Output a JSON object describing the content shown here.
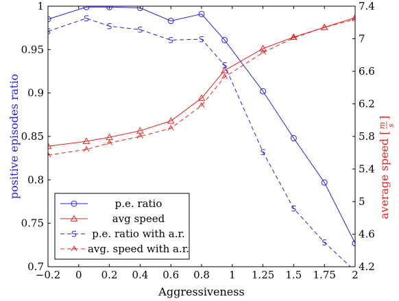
{
  "chart_data": {
    "type": "line",
    "xlabel": "Aggressiveness",
    "ylabel_left": "positive episodes ratio",
    "ylabel_right": "average speed [m/s]",
    "ylabel_right_prefix": "average speed",
    "ylabel_right_unit_num": "m",
    "ylabel_right_unit_den": "s",
    "x_ticks": [
      "−0.2",
      "0",
      "0.2",
      "0.4",
      "0.6",
      "0.8",
      "1",
      "1.25",
      "1.5",
      "1.75",
      "2"
    ],
    "y_left_ticks": [
      "0.7",
      "0.75",
      "0.8",
      "0.85",
      "0.9",
      "0.95",
      "1"
    ],
    "y_left_lim": [
      0.7,
      1.0
    ],
    "y_right_ticks": [
      "4.2",
      "4.6",
      "5",
      "5.4",
      "5.8",
      "6.2",
      "6.6",
      "7",
      "7.4"
    ],
    "y_right_lim": [
      4.2,
      7.4
    ],
    "grid": false,
    "legend_position": "bottom-left",
    "colors": {
      "blue": "#1f1fe6",
      "red": "#e61f1f"
    },
    "series": [
      {
        "name": "p.e. ratio",
        "axis": "left",
        "color": "#1f1fe6",
        "style": "solid",
        "marker": "circle",
        "x": [
          -0.2,
          0.05,
          0.2,
          0.4,
          0.6,
          0.8,
          0.95,
          1.25,
          1.5,
          1.75,
          2.0
        ],
        "y": [
          0.985,
          0.999,
          0.999,
          0.998,
          0.983,
          0.991,
          0.961,
          0.902,
          0.848,
          0.797,
          0.727
        ]
      },
      {
        "name": "avg speed",
        "axis": "right",
        "color": "#e61f1f",
        "style": "solid",
        "marker": "triangle",
        "x": [
          -0.2,
          0.05,
          0.2,
          0.4,
          0.6,
          0.8,
          0.95,
          1.25,
          1.5,
          1.75,
          2.0
        ],
        "y": [
          5.68,
          5.74,
          5.79,
          5.87,
          5.99,
          6.27,
          6.61,
          6.88,
          7.02,
          7.14,
          7.26
        ]
      },
      {
        "name": "p.e. ratio with a.r.",
        "axis": "left",
        "color": "#1f1fe6",
        "style": "dashed",
        "marker": "s-glyph",
        "x": [
          -0.2,
          0.05,
          0.2,
          0.4,
          0.6,
          0.8,
          0.95,
          1.25,
          1.5,
          1.75,
          2.0
        ],
        "y": [
          0.971,
          0.986,
          0.977,
          0.973,
          0.961,
          0.962,
          0.932,
          0.832,
          0.767,
          0.728,
          0.695
        ]
      },
      {
        "name": "avg. speed with a.r.",
        "axis": "right",
        "color": "#e61f1f",
        "style": "dashed",
        "marker": "tri-glyph",
        "x": [
          -0.2,
          0.05,
          0.2,
          0.4,
          0.6,
          0.8,
          0.95,
          1.25,
          1.5,
          1.75,
          2.0
        ],
        "y": [
          5.57,
          5.64,
          5.72,
          5.8,
          5.9,
          6.18,
          6.53,
          6.83,
          7.01,
          7.14,
          7.24
        ]
      }
    ]
  }
}
